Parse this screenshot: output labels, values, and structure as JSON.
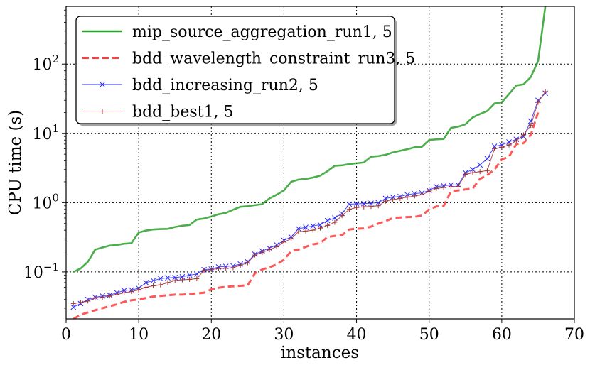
{
  "chart_data": {
    "type": "line",
    "xlabel": "instances",
    "ylabel": "CPU time (s)",
    "xlim": [
      0,
      70
    ],
    "ylim": [
      0.021,
      680
    ],
    "y_scale": "log",
    "x_ticks": [
      "0",
      "10",
      "20",
      "30",
      "40",
      "50",
      "60",
      "70"
    ],
    "y_ticks": [
      {
        "value": 0.1,
        "mantissa": "10",
        "exp": "−1"
      },
      {
        "value": 1,
        "mantissa": "10",
        "exp": "0"
      },
      {
        "value": 10,
        "mantissa": "10",
        "exp": "1"
      },
      {
        "value": 100,
        "mantissa": "10",
        "exp": "2"
      }
    ],
    "grid": true,
    "legend_position": "top-left",
    "series": [
      {
        "name": "mip_source_aggregation_run1, 5",
        "color": "#2ca02c",
        "style": "solid",
        "marker": "none",
        "values": [
          0.1,
          0.112,
          0.14,
          0.21,
          0.225,
          0.24,
          0.245,
          0.255,
          0.26,
          0.37,
          0.395,
          0.41,
          0.415,
          0.418,
          0.445,
          0.465,
          0.475,
          0.57,
          0.59,
          0.63,
          0.68,
          0.71,
          0.79,
          0.87,
          0.89,
          0.92,
          0.95,
          1.15,
          1.3,
          1.5,
          2.0,
          2.15,
          2.2,
          2.3,
          2.45,
          2.85,
          3.4,
          3.45,
          3.6,
          3.7,
          3.8,
          4.6,
          4.7,
          4.9,
          5.3,
          5.6,
          5.9,
          6.3,
          6.4,
          8.0,
          8.2,
          8.3,
          12.0,
          12.5,
          13.5,
          17.0,
          19.0,
          21.0,
          27.0,
          28.0,
          37.0,
          49.0,
          51.0,
          65.0,
          110.0,
          680.0
        ]
      },
      {
        "name": "bdd_wavelength_constraint_run3, 5",
        "color": "#ff3b3b",
        "style": "dashed",
        "marker": "none",
        "values": [
          0.021,
          0.024,
          0.026,
          0.028,
          0.03,
          0.032,
          0.034,
          0.037,
          0.039,
          0.04,
          0.042,
          0.044,
          0.045,
          0.046,
          0.047,
          0.047,
          0.048,
          0.049,
          0.05,
          0.056,
          0.059,
          0.061,
          0.062,
          0.063,
          0.064,
          0.095,
          0.108,
          0.117,
          0.128,
          0.15,
          0.2,
          0.21,
          0.23,
          0.25,
          0.26,
          0.32,
          0.33,
          0.34,
          0.41,
          0.42,
          0.425,
          0.45,
          0.5,
          0.54,
          0.6,
          0.61,
          0.62,
          0.625,
          0.65,
          0.8,
          0.88,
          0.9,
          1.45,
          1.5,
          1.55,
          1.6,
          2.2,
          2.5,
          3.0,
          4.2,
          4.6,
          7.0,
          7.2,
          9.5,
          20.0
        ]
      },
      {
        "name": "bdd_increasing_run2, 5",
        "color": "#2b2bff",
        "style": "solid",
        "marker": "x",
        "values": [
          0.031,
          0.035,
          0.04,
          0.043,
          0.045,
          0.046,
          0.05,
          0.054,
          0.055,
          0.058,
          0.07,
          0.075,
          0.08,
          0.082,
          0.083,
          0.085,
          0.09,
          0.093,
          0.108,
          0.11,
          0.118,
          0.12,
          0.122,
          0.13,
          0.14,
          0.18,
          0.2,
          0.22,
          0.245,
          0.285,
          0.32,
          0.42,
          0.44,
          0.46,
          0.48,
          0.55,
          0.6,
          0.7,
          0.95,
          0.96,
          0.97,
          0.98,
          1.0,
          1.15,
          1.2,
          1.23,
          1.3,
          1.35,
          1.38,
          1.5,
          1.7,
          1.75,
          1.8,
          1.8,
          2.7,
          3.0,
          3.5,
          4.3,
          6.5,
          6.8,
          7.5,
          8.2,
          9.0,
          15.0,
          30.0,
          38.0
        ]
      },
      {
        "name": "bdd_best1, 5",
        "color": "#a0322d",
        "style": "solid",
        "marker": "+",
        "values": [
          0.035,
          0.036,
          0.038,
          0.042,
          0.043,
          0.045,
          0.047,
          0.05,
          0.052,
          0.055,
          0.06,
          0.063,
          0.065,
          0.07,
          0.075,
          0.077,
          0.078,
          0.08,
          0.105,
          0.108,
          0.112,
          0.113,
          0.115,
          0.125,
          0.135,
          0.175,
          0.19,
          0.21,
          0.23,
          0.27,
          0.3,
          0.38,
          0.39,
          0.4,
          0.43,
          0.47,
          0.52,
          0.65,
          0.8,
          0.85,
          0.87,
          0.88,
          0.9,
          1.05,
          1.1,
          1.15,
          1.2,
          1.25,
          1.3,
          1.45,
          1.6,
          1.65,
          1.7,
          1.72,
          2.55,
          2.7,
          2.8,
          2.9,
          6.0,
          6.3,
          6.8,
          7.8,
          9.5,
          13.0,
          28.0,
          40.0
        ]
      }
    ]
  }
}
